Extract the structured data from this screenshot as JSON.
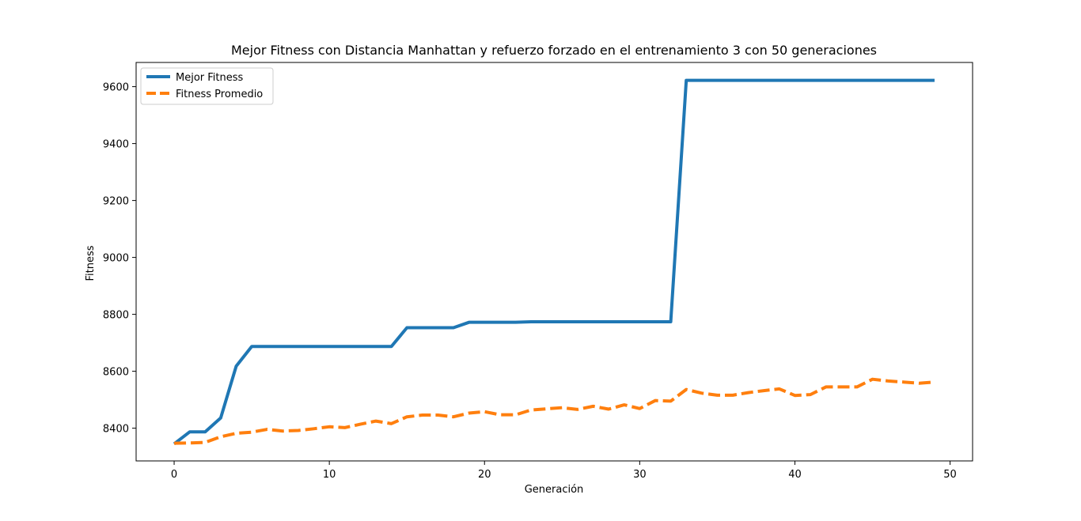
{
  "chart_data": {
    "type": "line",
    "title": "Mejor Fitness con Distancia Manhattan y refuerzo forzado en el entrenamiento 3 con 50 generaciones",
    "xlabel": "Generación",
    "ylabel": "Fitness",
    "xlim": [
      -2.45,
      51.45
    ],
    "ylim": [
      8285,
      9685
    ],
    "xticks": [
      0,
      10,
      20,
      30,
      40,
      50
    ],
    "yticks": [
      8400,
      8600,
      8800,
      9000,
      9200,
      9400,
      9600
    ],
    "xtick_labels": [
      "0",
      "10",
      "20",
      "30",
      "40",
      "50"
    ],
    "ytick_labels": [
      "8400",
      "8600",
      "8800",
      "9000",
      "9200",
      "9400",
      "9600"
    ],
    "grid": false,
    "legend_position": "upper-left",
    "x": [
      0,
      1,
      2,
      3,
      4,
      5,
      6,
      7,
      8,
      9,
      10,
      11,
      12,
      13,
      14,
      15,
      16,
      17,
      18,
      19,
      20,
      21,
      22,
      23,
      24,
      25,
      26,
      27,
      28,
      29,
      30,
      31,
      32,
      33,
      34,
      35,
      36,
      37,
      38,
      39,
      40,
      41,
      42,
      43,
      44,
      45,
      46,
      47,
      48,
      49
    ],
    "series": [
      {
        "name": "Mejor Fitness",
        "color": "#1f77b4",
        "style": "solid",
        "values": [
          8345,
          8387,
          8387,
          8436,
          8618,
          8687,
          8687,
          8687,
          8687,
          8687,
          8687,
          8687,
          8687,
          8687,
          8687,
          8753,
          8753,
          8753,
          8753,
          8772,
          8772,
          8772,
          8772,
          8774,
          8774,
          8774,
          8774,
          8774,
          8774,
          8774,
          8774,
          8774,
          8774,
          9622,
          9622,
          9622,
          9622,
          9622,
          9622,
          9622,
          9622,
          9622,
          9622,
          9622,
          9622,
          9622,
          9622,
          9622,
          9622,
          9622
        ]
      },
      {
        "name": "Fitness Promedio",
        "color": "#ff7f0e",
        "style": "dashed",
        "values": [
          8347,
          8348,
          8350,
          8370,
          8382,
          8386,
          8396,
          8390,
          8392,
          8398,
          8405,
          8402,
          8414,
          8425,
          8416,
          8440,
          8446,
          8446,
          8440,
          8453,
          8458,
          8447,
          8447,
          8464,
          8468,
          8472,
          8466,
          8477,
          8467,
          8482,
          8469,
          8497,
          8495,
          8536,
          8523,
          8516,
          8516,
          8525,
          8532,
          8538,
          8515,
          8518,
          8545,
          8545,
          8545,
          8572,
          8566,
          8562,
          8558,
          8562
        ]
      }
    ]
  }
}
